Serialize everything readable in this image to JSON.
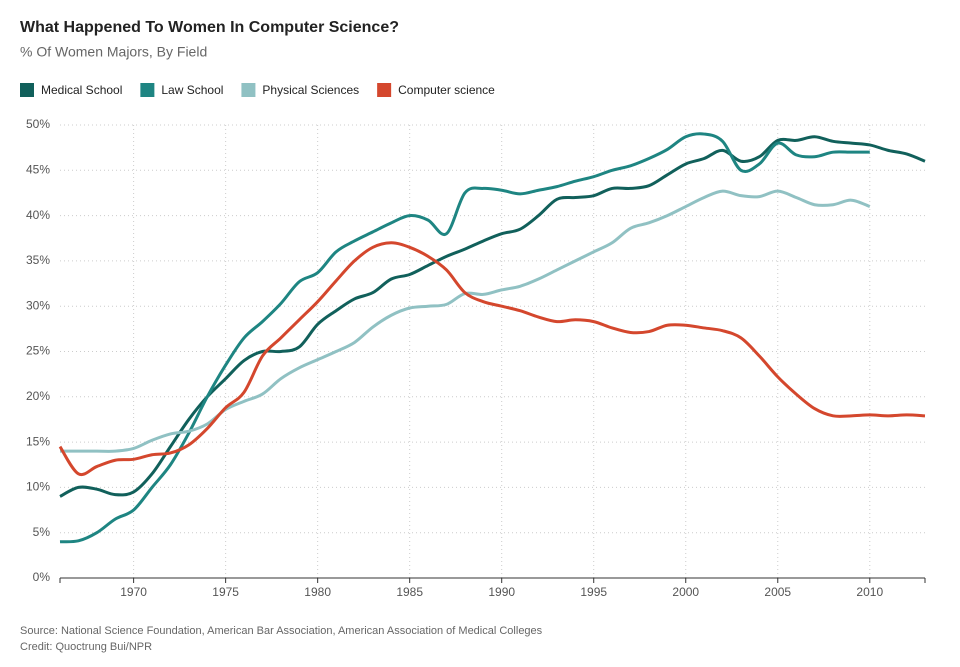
{
  "chart_data": {
    "type": "line",
    "title": "What Happened To Women In Computer Science?",
    "subtitle": "% Of Women Majors, By Field",
    "source": "Source: National Science Foundation, American Bar Association, American Association of Medical Colleges",
    "credit": "Credit: Quoctrung Bui/NPR",
    "x": [
      1966,
      1967,
      1968,
      1969,
      1970,
      1971,
      1972,
      1973,
      1974,
      1975,
      1976,
      1977,
      1978,
      1979,
      1980,
      1981,
      1982,
      1983,
      1984,
      1985,
      1986,
      1987,
      1988,
      1989,
      1990,
      1991,
      1992,
      1993,
      1994,
      1995,
      1996,
      1997,
      1998,
      1999,
      2000,
      2001,
      2002,
      2003,
      2004,
      2005,
      2006,
      2007,
      2008,
      2009,
      2010,
      2011,
      2012,
      2013
    ],
    "series": [
      {
        "name": "Medical School",
        "color": "#11605b",
        "values": [
          9,
          10,
          9.8,
          9.2,
          9.5,
          11.5,
          14.5,
          17.5,
          20,
          22,
          24,
          25,
          25,
          25.5,
          28,
          29.5,
          30.8,
          31.5,
          33,
          33.5,
          34.5,
          35.5,
          36.3,
          37.2,
          38,
          38.5,
          40,
          41.8,
          42,
          42.2,
          43,
          43,
          43.3,
          44.5,
          45.7,
          46.3,
          47.2,
          46,
          46.5,
          48.3,
          48.3,
          48.7,
          48.2,
          48,
          47.8,
          47.2,
          46.8,
          46
        ]
      },
      {
        "name": "Law School",
        "color": "#1e8582",
        "values": [
          4,
          4.1,
          5,
          6.5,
          7.5,
          10,
          12.5,
          16,
          20,
          23.5,
          26.5,
          28.3,
          30.3,
          32.7,
          33.7,
          36,
          37.2,
          38.2,
          39.2,
          40,
          39.5,
          38,
          42.5,
          43,
          42.8,
          42.4,
          42.8,
          43.2,
          43.8,
          44.3,
          45,
          45.5,
          46.3,
          47.3,
          48.7,
          49,
          48.2,
          45,
          45.7,
          48,
          46.7,
          46.5,
          47,
          47,
          47,
          null,
          null,
          null
        ]
      },
      {
        "name": "Physical Sciences",
        "color": "#90c1c3",
        "values": [
          14,
          14,
          14,
          14,
          14.3,
          15.2,
          15.9,
          16.2,
          17,
          18.6,
          19.5,
          20.3,
          22,
          23.2,
          24.1,
          25,
          26,
          27.7,
          29,
          29.8,
          30,
          30.2,
          31.4,
          31.3,
          31.8,
          32.2,
          33,
          34,
          35,
          36,
          37,
          38.6,
          39.2,
          40,
          41,
          42,
          42.7,
          42.2,
          42.1,
          42.7,
          42,
          41.2,
          41.2,
          41.7,
          41,
          null,
          null,
          null
        ]
      },
      {
        "name": "Computer science",
        "color": "#d4472d",
        "values": [
          14.5,
          11.5,
          12.3,
          13,
          13.1,
          13.6,
          13.8,
          14.7,
          16.5,
          18.8,
          20.5,
          24.5,
          26.5,
          28.5,
          30.5,
          32.8,
          35,
          36.5,
          37,
          36.5,
          35.5,
          34,
          31.5,
          30.5,
          30,
          29.5,
          28.8,
          28.3,
          28.5,
          28.3,
          27.6,
          27.1,
          27.2,
          27.9,
          27.9,
          27.6,
          27.3,
          26.5,
          24.5,
          22.2,
          20.3,
          18.7,
          17.9,
          17.9,
          18,
          17.9,
          18,
          17.9
        ]
      }
    ],
    "xlim": [
      1966,
      2013
    ],
    "xticks": [
      1970,
      1975,
      1980,
      1985,
      1990,
      1995,
      2000,
      2005,
      2010
    ],
    "ylim": [
      0,
      50
    ],
    "yticks": [
      {
        "value": 0,
        "label": "0%"
      },
      {
        "value": 5,
        "label": "5%"
      },
      {
        "value": 10,
        "label": "10%"
      },
      {
        "value": 15,
        "label": "15%"
      },
      {
        "value": 20,
        "label": "20%"
      },
      {
        "value": 25,
        "label": "25%"
      },
      {
        "value": 30,
        "label": "30%"
      },
      {
        "value": 35,
        "label": "35%"
      },
      {
        "value": 40,
        "label": "40%"
      },
      {
        "value": 45,
        "label": "45%"
      },
      {
        "value": 50,
        "label": "50%"
      }
    ],
    "grid": true
  }
}
